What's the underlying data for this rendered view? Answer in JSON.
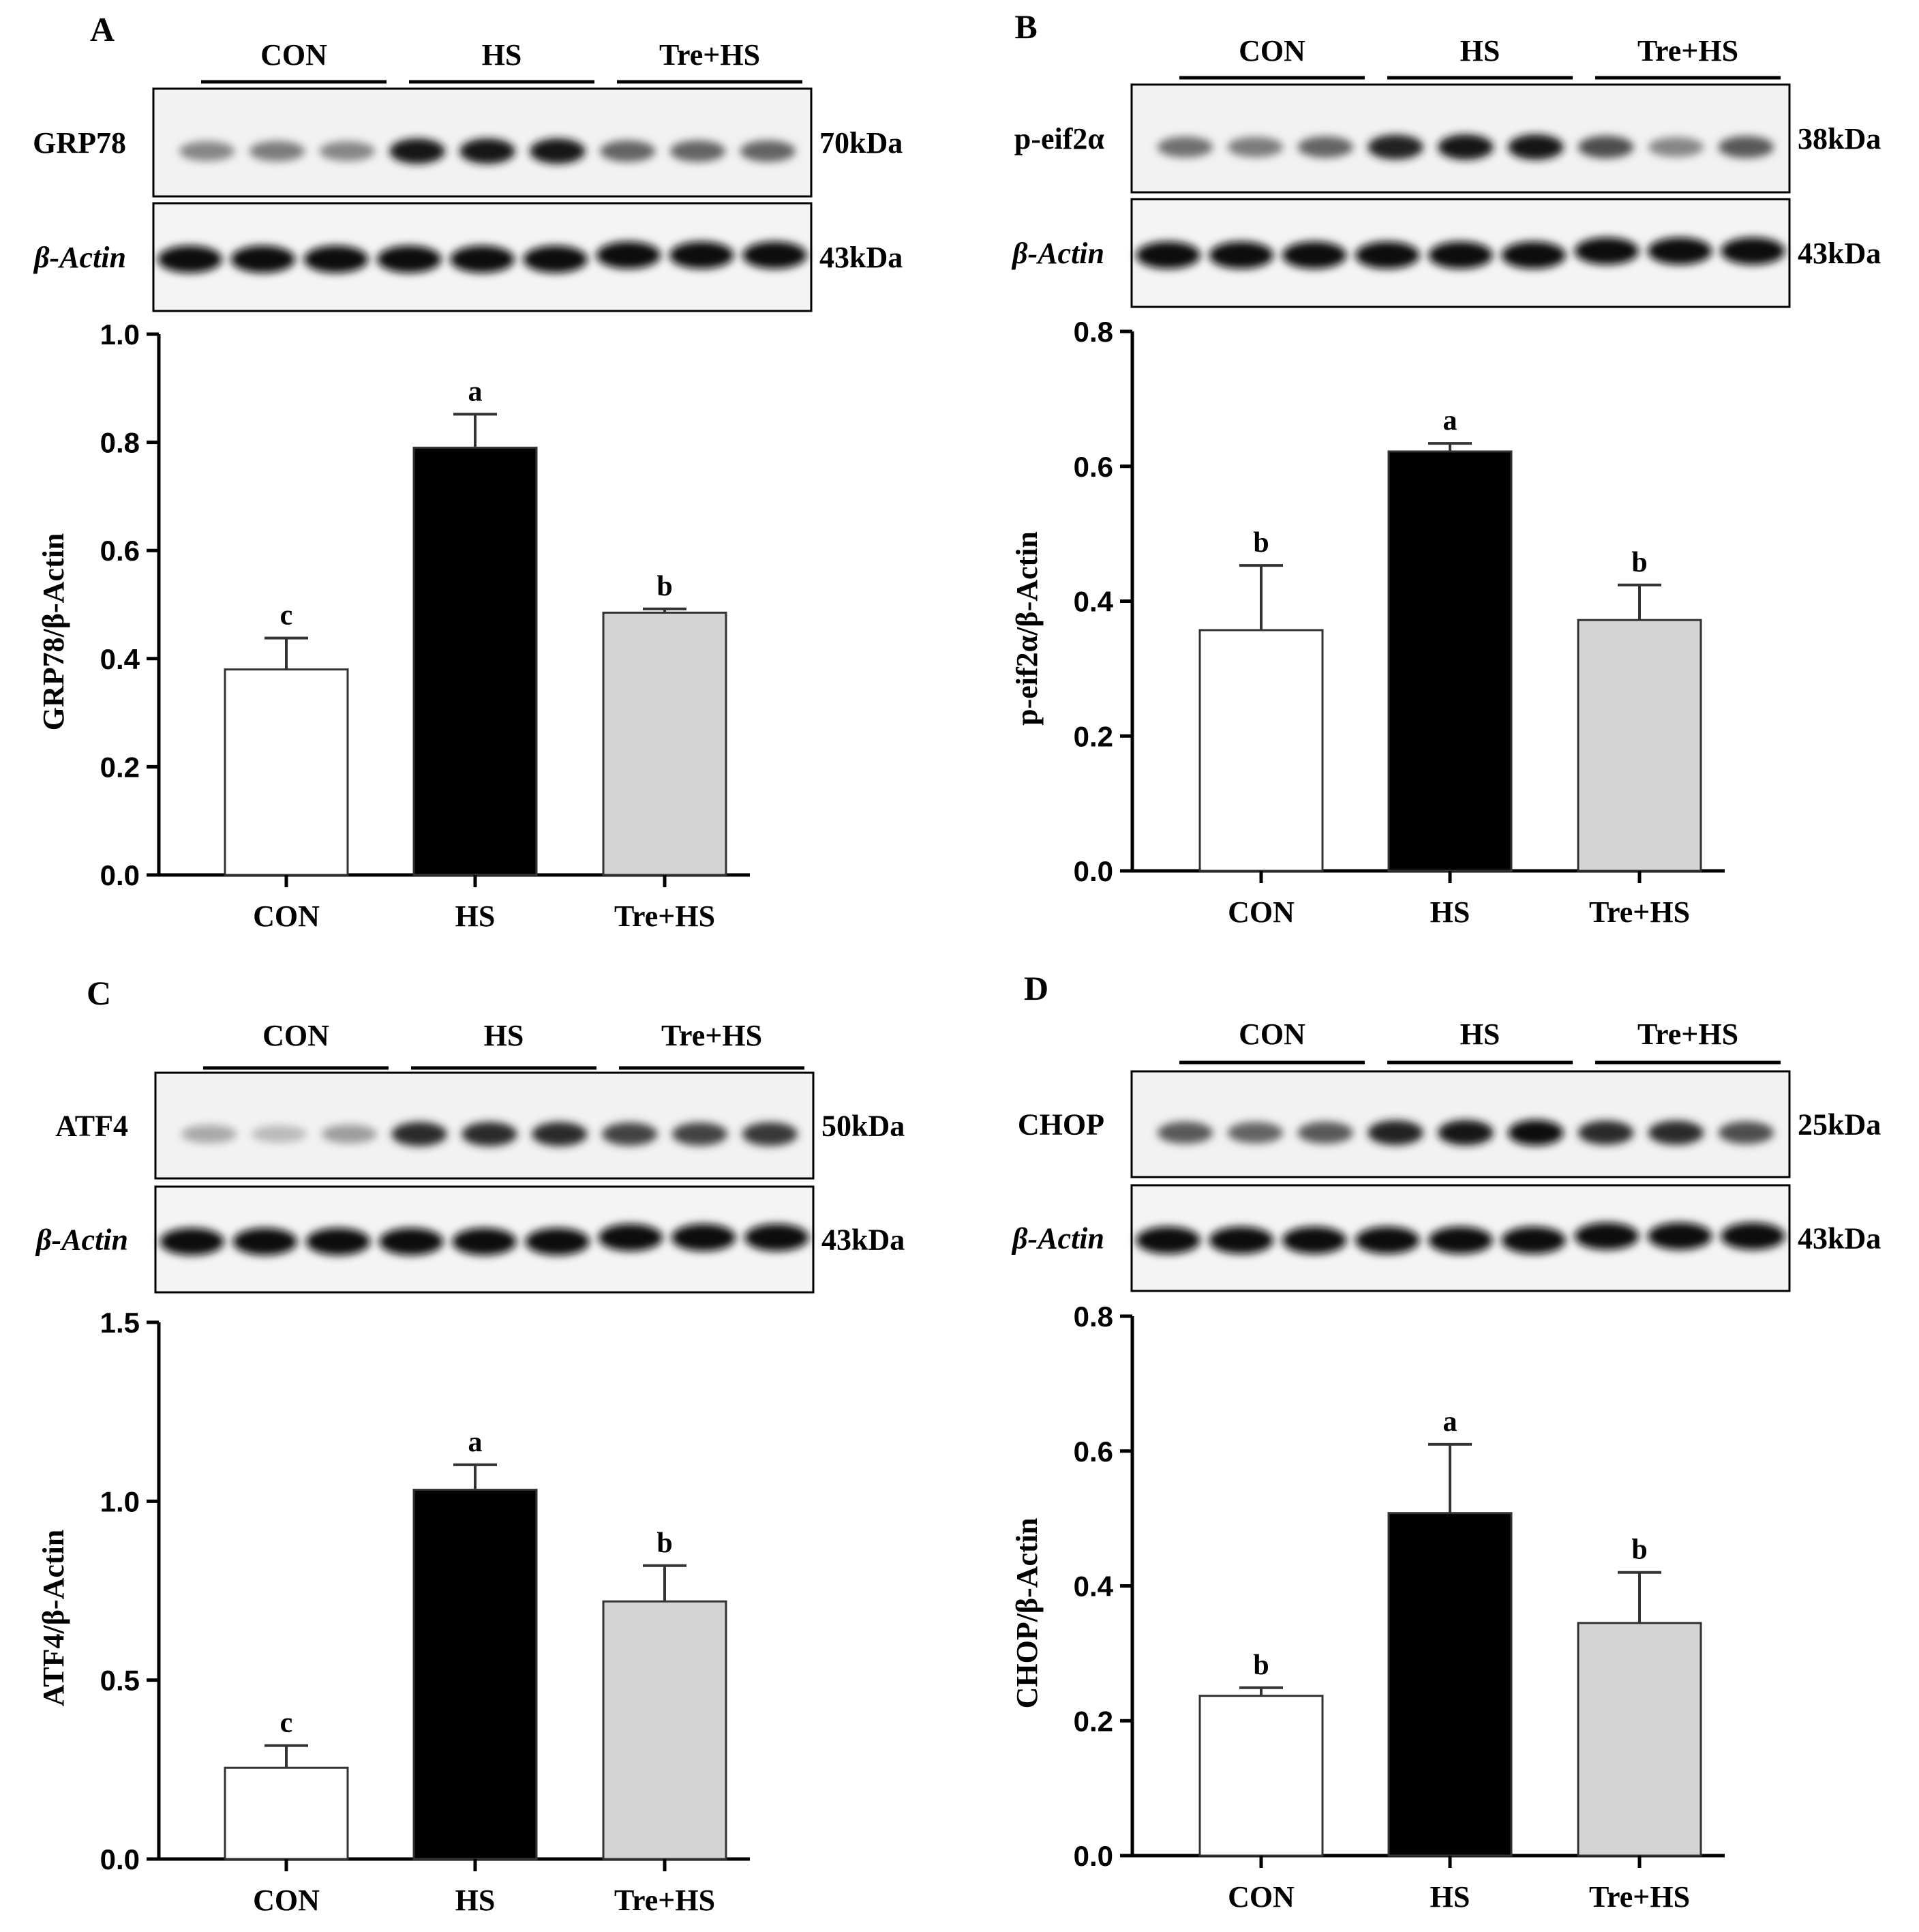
{
  "groups": [
    "CON",
    "HS",
    "Tre+HS"
  ],
  "colors": {
    "CON": "#ffffff",
    "HS": "#000000",
    "Tre+HS": "#d4d4d4"
  },
  "panels": [
    {
      "letter": "A",
      "target_label": "GRP78",
      "target_kda": "70kDa",
      "actin_label": "β-Actin",
      "actin_kda": "43kDa",
      "band_intensity": [
        0.45,
        0.5,
        0.45,
        0.95,
        0.95,
        0.95,
        0.6,
        0.6,
        0.6
      ],
      "chart_data": {
        "type": "bar",
        "categories": [
          "CON",
          "HS",
          "Tre+HS"
        ],
        "values": [
          0.38,
          0.79,
          0.485
        ],
        "errors": [
          0.058,
          0.062,
          0.007
        ],
        "letters": [
          "c",
          "a",
          "b"
        ],
        "ylabel": "GRP78/β-Actin",
        "ylim": [
          0,
          1.0
        ],
        "ticks": [
          "0.0",
          "0.2",
          "0.4",
          "0.6",
          "0.8",
          "1.0"
        ]
      }
    },
    {
      "letter": "B",
      "target_label": "p-eif2α",
      "target_kda": "38kDa",
      "actin_label": "β-Actin",
      "actin_kda": "43kDa",
      "band_intensity": [
        0.55,
        0.5,
        0.6,
        0.9,
        0.95,
        0.95,
        0.7,
        0.45,
        0.65
      ],
      "chart_data": {
        "type": "bar",
        "categories": [
          "CON",
          "HS",
          "Tre+HS"
        ],
        "values": [
          0.357,
          0.622,
          0.372
        ],
        "errors": [
          0.096,
          0.012,
          0.052
        ],
        "letters": [
          "b",
          "a",
          "b"
        ],
        "ylabel": "p-eif2α/β-Actin",
        "ylim": [
          0,
          0.8
        ],
        "ticks": [
          "0.0",
          "0.2",
          "0.4",
          "0.6",
          "0.8"
        ]
      }
    },
    {
      "letter": "C",
      "target_label": "ATF4",
      "target_kda": "50kDa",
      "actin_label": "β-Actin",
      "actin_kda": "43kDa",
      "band_intensity": [
        0.3,
        0.22,
        0.35,
        0.85,
        0.85,
        0.85,
        0.75,
        0.75,
        0.8
      ],
      "chart_data": {
        "type": "bar",
        "categories": [
          "CON",
          "HS",
          "Tre+HS"
        ],
        "values": [
          0.255,
          1.032,
          0.72
        ],
        "errors": [
          0.062,
          0.07,
          0.1
        ],
        "letters": [
          "c",
          "a",
          "b"
        ],
        "ylabel": "ATF4/β-Actin",
        "ylim": [
          0,
          1.5
        ],
        "ticks": [
          "0.0",
          "0.5",
          "1.0",
          "1.5"
        ]
      }
    },
    {
      "letter": "D",
      "target_label": "CHOP",
      "target_kda": "25kDa",
      "actin_label": "β-Actin",
      "actin_kda": "43kDa",
      "band_intensity": [
        0.65,
        0.6,
        0.65,
        0.9,
        0.95,
        0.98,
        0.85,
        0.85,
        0.7
      ],
      "chart_data": {
        "type": "bar",
        "categories": [
          "CON",
          "HS",
          "Tre+HS"
        ],
        "values": [
          0.237,
          0.508,
          0.345
        ],
        "errors": [
          0.012,
          0.102,
          0.075
        ],
        "letters": [
          "b",
          "a",
          "b"
        ],
        "ylabel": "CHOP/β-Actin",
        "ylim": [
          0,
          0.8
        ],
        "ticks": [
          "0.0",
          "0.2",
          "0.4",
          "0.6",
          "0.8"
        ]
      }
    }
  ]
}
